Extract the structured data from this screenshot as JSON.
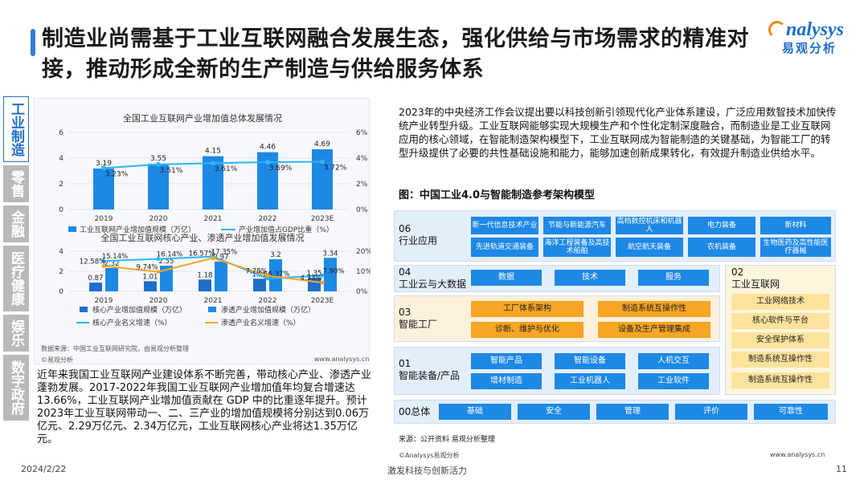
{
  "title": "制造业尚需基于工业互联网融合发展生态，强化供给与市场需求的精准对接，推动形成全新的生产制造与供给服务体系",
  "logo": {
    "en": "nalysys",
    "cn": "易观分析"
  },
  "sidebar": [
    "工业制造",
    "零售",
    "金融",
    "医疗健康",
    "娱乐",
    "数字政府"
  ],
  "chart1": {
    "title": "全国工业互联网产业增加值总体发展情况",
    "legend": [
      "工业互联网产业增加值规模（万亿）",
      "产业增加值占GDP比重（%）"
    ],
    "left_ticks": [
      "6",
      "4",
      "2",
      "0"
    ],
    "right_ticks": [
      "6%",
      "4%",
      "2%",
      "0%"
    ]
  },
  "chart2": {
    "title": "全国工业互联网核心产业、渗透产业增加值发展情况",
    "legend": [
      "核心产业增加值规模（万亿）",
      "渗透产业增加值规模（万亿）",
      "核心产业名义增速（%）",
      "渗透产业名义增速（%）"
    ],
    "left_ticks": [
      "4",
      "2",
      "0"
    ],
    "right_ticks": [
      "20%",
      "10%",
      "0%"
    ]
  },
  "chart_data": [
    {
      "type": "bar",
      "title": "全国工业互联网产业增加值总体发展情况",
      "categories": [
        "2019",
        "2020",
        "2021",
        "2022",
        "2023E"
      ],
      "series": [
        {
          "name": "工业互联网产业增加值规模（万亿）",
          "type": "bar",
          "values": [
            3.19,
            3.55,
            4.15,
            4.46,
            4.69
          ],
          "labels": [
            "3.19",
            "3.55",
            "4.15",
            "4.46",
            "4.69"
          ]
        },
        {
          "name": "产业增加值占GDP比重（%）",
          "type": "line",
          "axis": "right",
          "values": [
            3.23,
            3.51,
            3.61,
            3.69,
            3.72
          ],
          "labels": [
            "3.23%",
            "3.51%",
            "3.61%",
            "3.69%",
            "3.72%"
          ]
        }
      ],
      "ylim": [
        0,
        6
      ],
      "y2lim": [
        0,
        6
      ]
    },
    {
      "type": "bar",
      "title": "全国工业互联网核心产业、渗透产业增加值发展情况",
      "categories": [
        "2019",
        "2020",
        "2021",
        "2022",
        "2023E"
      ],
      "series": [
        {
          "name": "核心产业增加值规模（万亿）",
          "type": "bar",
          "values": [
            0.87,
            1.01,
            1.18,
            1.26,
            1.35
          ],
          "labels": [
            "0.87",
            "1.01",
            "1.18",
            "1.26",
            "1.35"
          ]
        },
        {
          "name": "渗透产业增加值规模（万亿）",
          "type": "bar",
          "values": [
            2.32,
            2.55,
            2.97,
            3.2,
            3.34
          ],
          "labels": [
            "2.32",
            "2.55",
            "2.97",
            "3.2",
            "3.34"
          ]
        },
        {
          "name": "核心产业名义增速（%）",
          "type": "line",
          "axis": "right",
          "values": [
            15.14,
            16.14,
            17.35,
            6.37,
            7.9
          ],
          "labels": [
            "15.14%",
            "16.14%",
            "17.35%",
            "6.37%",
            "7.90%"
          ]
        },
        {
          "name": "渗透产业名义增速（%）",
          "type": "line",
          "axis": "right",
          "values": [
            12.58,
            9.74,
            16.57,
            7.78,
            4.33
          ],
          "labels": [
            "12.58%",
            "9.74%",
            "16.57%",
            "7.78%",
            "4.33%"
          ]
        }
      ],
      "ylim": [
        0,
        4
      ],
      "y2lim": [
        0,
        20
      ]
    }
  ],
  "chart_source": "数据来源：中国工业互联网研究院，由易观分析整理",
  "chart_footer_left": "©易观分析",
  "chart_footer_right": "www.analysys.cn",
  "lower_text": "近年来我国工业互联网产业建设体系不断完善，带动核心产业、渗透产业蓬勃发展。2017-2022年我国工业互联网产业增加值年均复合增速达 13.66%，工业互联网产业增加值贡献在 GDP 中的比重逐年提升。预计2023年工业互联网带动一、二、三产业的增加值规模将分别达到0.06万亿元、2.29万亿元、2.34万亿元，工业互联网核心产业将达1.35万亿元。",
  "right_text": "2023年的中央经济工作会议提出要以科技创新引领现代化产业体系建设，广泛应用数智技术加快传统产业转型升级。工业互联网能够实现大规模生产和个性化定制深度融合，而制造业是工业互联网应用的核心领域，在智能制造架构模型下，工业互联网成为智能制造的关键基础，为智能工厂的转型升级提供了必要的共性基础设施和能力，能够加速创新成果转化，有效提升制造业供给水平。",
  "figure_title": "图：中国工业4.0与智能制造参考架构模型",
  "arch": {
    "r06_label": "06\n行业应用",
    "r06_row1": [
      "新一代信息技术产业",
      "节能与新能源汽车",
      "高档数控机床和机器人",
      "电力装备",
      "新材料"
    ],
    "r06_row2": [
      "先进轨道交通装备",
      "海洋工程装备及高技术船舶",
      "航空航天装备",
      "农机装备",
      "生物医药及高性能医疗器械"
    ],
    "r04_label": "04\n工业云与大数据",
    "r04_items": [
      "数据",
      "技术",
      "服务"
    ],
    "r03_label": "03\n智能工厂",
    "r03_items": [
      "工厂体系架构",
      "制造系统互操作性",
      "诊断、维护与优化",
      "设备及生产管理集成"
    ],
    "r02_label": "02\n工业互联网",
    "r02_items": [
      "工业网络技术",
      "核心软件与平台",
      "安全保护体系",
      "制造系统互操作性",
      "制造系统互操作性"
    ],
    "r01_label": "01\n智能装备/产品",
    "r01_items": [
      "智能产品",
      "智能设备",
      "人机交互",
      "增材制造",
      "工业机器人",
      "工业软件"
    ],
    "r00_label": "00总体",
    "r00_items": [
      "基础",
      "安全",
      "管理",
      "评价",
      "可靠性"
    ]
  },
  "arch_source": "来源：公开资料 易观分析整理",
  "footer_source": "©Analysys易观分析",
  "footer_url": "www.analysys.cn",
  "date": "2024/2/22",
  "slogan": "激发科技与创新活力",
  "page_number": "11",
  "colors": {
    "accent": "#2f7fd6",
    "bar_blue": "#1e88e5",
    "orange": "#f7a524",
    "light_blue": "#29b6f6"
  }
}
